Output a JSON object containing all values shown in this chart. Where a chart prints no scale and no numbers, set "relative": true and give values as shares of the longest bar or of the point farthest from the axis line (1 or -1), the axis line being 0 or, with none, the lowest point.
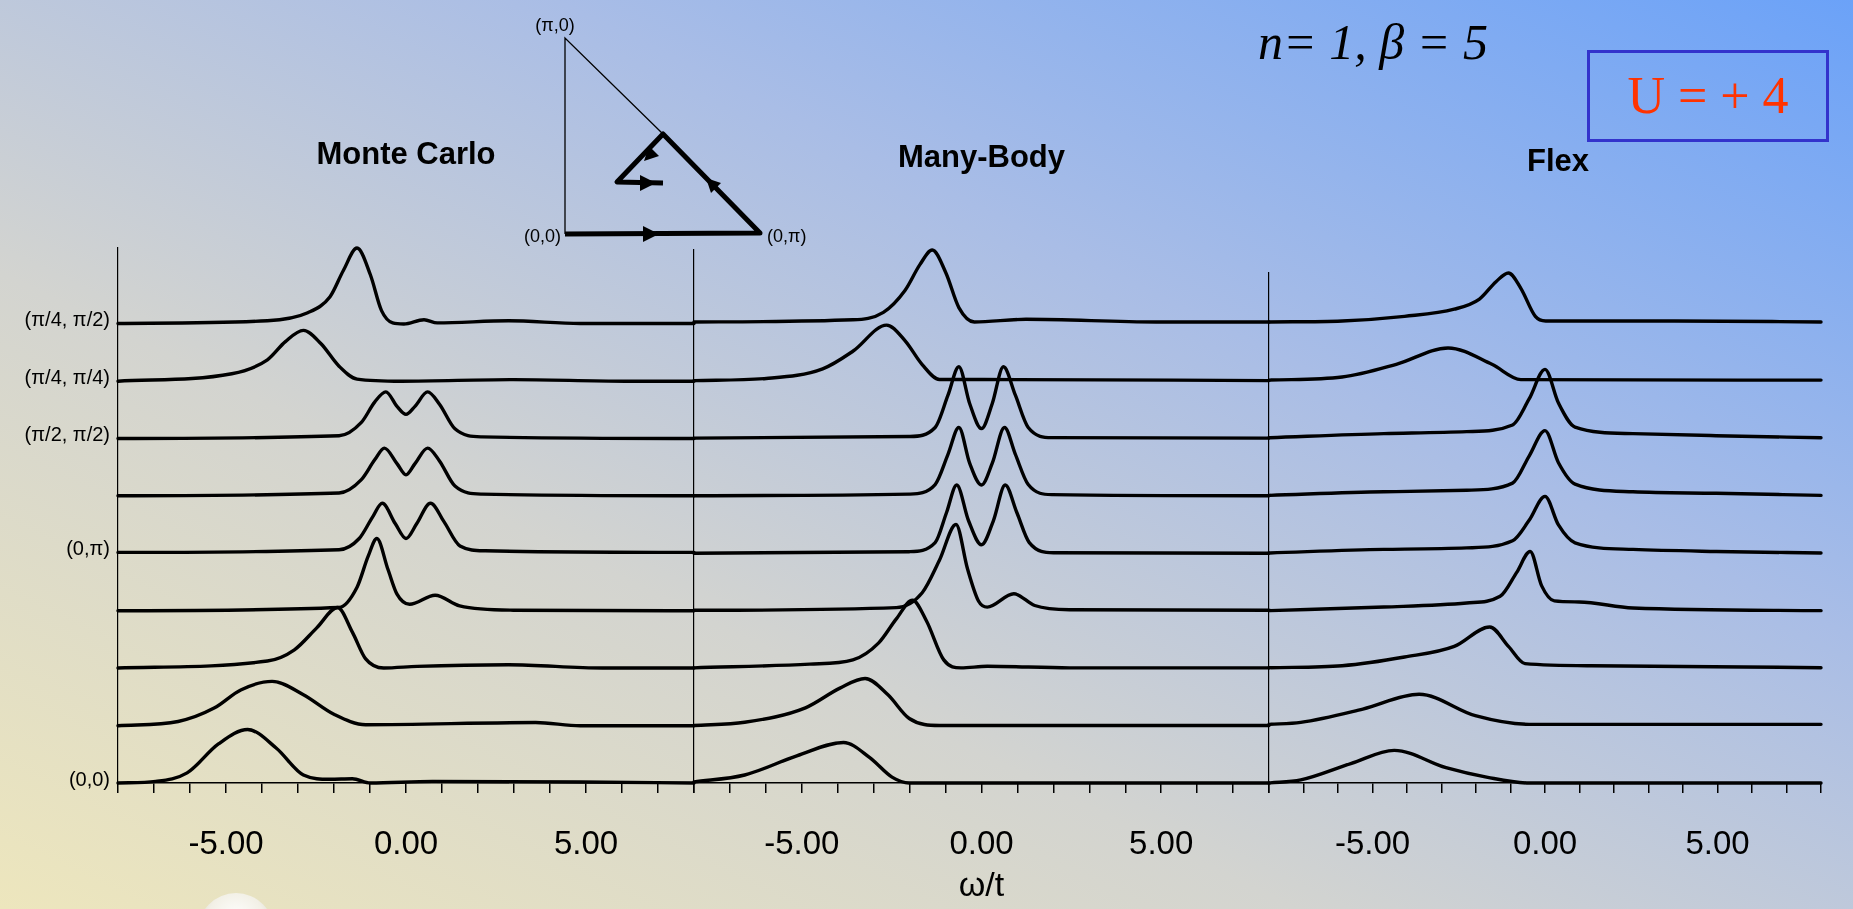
{
  "chart_data": [
    {
      "type": "line",
      "title": "Monte Carlo",
      "relative": true,
      "xlim": [
        -8,
        8
      ],
      "xticks": [
        {
          "value": -8,
          "label": null
        },
        {
          "value": -7,
          "label": null
        },
        {
          "value": -6,
          "label": null
        },
        {
          "value": -5,
          "label": "-5.00"
        },
        {
          "value": -4,
          "label": null
        },
        {
          "value": -3,
          "label": null
        },
        {
          "value": -2,
          "label": null
        },
        {
          "value": -1,
          "label": null
        },
        {
          "value": 0,
          "label": "0.00"
        },
        {
          "value": 1,
          "label": null
        },
        {
          "value": 2,
          "label": null
        },
        {
          "value": 3,
          "label": null
        },
        {
          "value": 4,
          "label": null
        },
        {
          "value": 5,
          "label": "5.00"
        },
        {
          "value": 6,
          "label": null
        },
        {
          "value": 7,
          "label": null
        },
        {
          "value": 8,
          "label": null
        }
      ],
      "annotations": [
        "(π,0)",
        "(0,0)",
        "(0,π)"
      ],
      "series": [
        {
          "name": "(π/4, π/2)",
          "color": "#000000",
          "x": [
            -8,
            -3.85,
            -2.73,
            -2.11,
            -1.74,
            -1.36,
            -0.99,
            -0.68,
            -0.37,
            -0.06,
            0.5,
            0.87,
            2.85,
            4.84,
            8
          ],
          "values": [
            0.859,
            0.864,
            0.879,
            0.909,
            0.958,
            1,
            0.95,
            0.883,
            0.86,
            0.858,
            0.866,
            0.86,
            0.864,
            0.859,
            0.859
          ]
        },
        {
          "name": "(π/4, π/4)",
          "color": "#000000",
          "x": [
            -8,
            -4.84,
            -3.85,
            -3.35,
            -2.85,
            -2.36,
            -1.86,
            -1.36,
            -0.12,
            2.98,
            6.08,
            8
          ],
          "values": [
            0.751,
            0.765,
            0.791,
            0.825,
            0.846,
            0.821,
            0.779,
            0.755,
            0.751,
            0.754,
            0.751,
            0.751
          ]
        },
        {
          "name": "(π/2, π/2)",
          "color": "#000000",
          "x": [
            -8,
            -1.86,
            -1.24,
            -0.87,
            -0.56,
            -0.25,
            0,
            0.25,
            0.6,
            0.93,
            1.36,
            2.11,
            8
          ],
          "values": [
            0.644,
            0.649,
            0.674,
            0.712,
            0.731,
            0.704,
            0.689,
            0.704,
            0.731,
            0.708,
            0.662,
            0.647,
            0.644
          ]
        },
        {
          "color": "#000000",
          "x": [
            -8,
            -1.86,
            -1.24,
            -0.87,
            -0.6,
            -0.25,
            0,
            0.25,
            0.6,
            0.93,
            1.36,
            2.11,
            8
          ],
          "values": [
            0.537,
            0.542,
            0.567,
            0.604,
            0.626,
            0.597,
            0.576,
            0.597,
            0.626,
            0.602,
            0.555,
            0.54,
            0.537
          ]
        },
        {
          "name": "(0,π)",
          "color": "#000000",
          "x": [
            -8,
            -1.86,
            -1.3,
            -0.93,
            -0.66,
            -0.3,
            0,
            0.3,
            0.68,
            1.05,
            1.5,
            2.2,
            8
          ],
          "values": [
            0.431,
            0.436,
            0.457,
            0.497,
            0.523,
            0.485,
            0.457,
            0.485,
            0.523,
            0.489,
            0.443,
            0.434,
            0.431
          ]
        },
        {
          "color": "#000000",
          "x": [
            -8,
            -1.86,
            -1.36,
            -1.05,
            -0.81,
            -0.5,
            -0.25,
            0.1,
            0.81,
            1.49,
            2.98,
            8
          ],
          "values": [
            0.322,
            0.328,
            0.366,
            0.424,
            0.457,
            0.399,
            0.353,
            0.334,
            0.351,
            0.331,
            0.323,
            0.322
          ]
        },
        {
          "color": "#000000",
          "x": [
            -8,
            -3.85,
            -3.1,
            -2.48,
            -1.9,
            -1.49,
            -1.12,
            -0.62,
            0.31,
            2.85,
            5.46,
            8
          ],
          "values": [
            0.215,
            0.228,
            0.249,
            0.29,
            0.328,
            0.282,
            0.232,
            0.215,
            0.218,
            0.221,
            0.215,
            0.215
          ]
        },
        {
          "color": "#000000",
          "x": [
            -8,
            -6.33,
            -5.33,
            -4.59,
            -3.72,
            -2.85,
            -1.99,
            -1.12,
            3.6,
            4.84,
            8
          ],
          "values": [
            0.107,
            0.115,
            0.14,
            0.174,
            0.19,
            0.165,
            0.128,
            0.109,
            0.113,
            0.107,
            0.107
          ]
        },
        {
          "name": "(0,0)",
          "color": "#000000",
          "x": [
            -8,
            -6.95,
            -6.08,
            -5.21,
            -4.4,
            -3.6,
            -2.85,
            -2.11,
            -1.49,
            -0.99,
            0.74,
            4.84,
            8
          ],
          "values": [
            0,
            0.003,
            0.019,
            0.073,
            0.1,
            0.065,
            0.015,
            0.007,
            0.008,
            0,
            0.003,
            0.002,
            0
          ]
        }
      ]
    },
    {
      "type": "line",
      "title": "Many-Body",
      "xlabel": "ω/t",
      "relative": true,
      "xlim": [
        -8,
        8
      ],
      "xticks": [
        {
          "value": -8,
          "label": null
        },
        {
          "value": -7,
          "label": null
        },
        {
          "value": -6,
          "label": null
        },
        {
          "value": -5,
          "label": "-5.00"
        },
        {
          "value": -4,
          "label": null
        },
        {
          "value": -3,
          "label": null
        },
        {
          "value": -2,
          "label": null
        },
        {
          "value": -1,
          "label": null
        },
        {
          "value": 0,
          "label": "0.00"
        },
        {
          "value": 1,
          "label": null
        },
        {
          "value": 2,
          "label": null
        },
        {
          "value": 3,
          "label": null
        },
        {
          "value": 4,
          "label": null
        },
        {
          "value": 5,
          "label": "5.00"
        },
        {
          "value": 6,
          "label": null
        },
        {
          "value": 7,
          "label": null
        },
        {
          "value": 8,
          "label": null
        }
      ],
      "series": [
        {
          "color": "#000000",
          "x": [
            -8,
            -3.58,
            -2.73,
            -2.13,
            -1.71,
            -1.37,
            -0.99,
            -0.63,
            -0.2,
            1.24,
            4.86,
            8
          ],
          "values": [
            0.865,
            0.869,
            0.883,
            0.924,
            0.973,
            1,
            0.957,
            0.892,
            0.865,
            0.87,
            0.865,
            0.865
          ]
        },
        {
          "color": "#000000",
          "x": [
            -8,
            -5.99,
            -4.42,
            -3.58,
            -2.64,
            -2.13,
            -1.65,
            -1.17,
            0.04,
            8
          ],
          "values": [
            0.755,
            0.759,
            0.777,
            0.81,
            0.859,
            0.83,
            0.785,
            0.757,
            0.757,
            0.755
          ]
        },
        {
          "color": "#000000",
          "x": [
            -8,
            -2.01,
            -1.29,
            -0.93,
            -0.63,
            -0.33,
            0,
            0.3,
            0.61,
            0.94,
            1.3,
            1.96,
            8
          ],
          "values": [
            0.647,
            0.65,
            0.667,
            0.728,
            0.781,
            0.712,
            0.665,
            0.712,
            0.781,
            0.728,
            0.667,
            0.648,
            0.647
          ]
        },
        {
          "color": "#000000",
          "x": [
            -8,
            -2.01,
            -1.29,
            -0.93,
            -0.63,
            -0.33,
            0,
            0.3,
            0.64,
            0.94,
            1.3,
            1.96,
            8
          ],
          "values": [
            0.539,
            0.542,
            0.56,
            0.617,
            0.667,
            0.6,
            0.559,
            0.6,
            0.667,
            0.617,
            0.56,
            0.541,
            0.539
          ]
        },
        {
          "color": "#000000",
          "x": [
            -8,
            -2.01,
            -1.29,
            -0.97,
            -0.69,
            -0.36,
            0,
            0.33,
            0.66,
            0.98,
            1.33,
            2,
            8
          ],
          "values": [
            0.431,
            0.434,
            0.451,
            0.508,
            0.559,
            0.492,
            0.447,
            0.492,
            0.559,
            0.508,
            0.451,
            0.432,
            0.431
          ]
        },
        {
          "color": "#000000",
          "x": [
            -8,
            -2.37,
            -1.65,
            -1.17,
            -0.71,
            -0.39,
            -0.08,
            0.16,
            0.9,
            1.48,
            2.45,
            8
          ],
          "values": [
            0.324,
            0.329,
            0.357,
            0.418,
            0.485,
            0.402,
            0.341,
            0.33,
            0.355,
            0.333,
            0.325,
            0.324
          ]
        },
        {
          "color": "#000000",
          "x": [
            -8,
            -4.78,
            -3.58,
            -2.86,
            -2.37,
            -1.92,
            -1.53,
            -1.05,
            -0.57,
            0.16,
            2.45,
            8
          ],
          "values": [
            0.216,
            0.223,
            0.231,
            0.263,
            0.308,
            0.343,
            0.304,
            0.231,
            0.216,
            0.219,
            0.216,
            0.216
          ]
        },
        {
          "color": "#000000",
          "x": [
            -8,
            -6.59,
            -4.9,
            -3.94,
            -3.24,
            -2.61,
            -2.01,
            -1.17,
            8
          ],
          "values": [
            0.108,
            0.114,
            0.141,
            0.178,
            0.196,
            0.166,
            0.121,
            0.108,
            0.108
          ]
        },
        {
          "color": "#000000",
          "x": [
            -8,
            -6.59,
            -5.14,
            -3.84,
            -3.1,
            -2.49,
            -2.01,
            8
          ],
          "values": [
            0.002,
            0.015,
            0.051,
            0.076,
            0.047,
            0.011,
            0,
            0
          ]
        }
      ]
    },
    {
      "type": "line",
      "title": "Flex",
      "relative": true,
      "xlim": [
        -8,
        8
      ],
      "xticks": [
        {
          "value": -8,
          "label": null
        },
        {
          "value": -7,
          "label": null
        },
        {
          "value": -6,
          "label": null
        },
        {
          "value": -5,
          "label": "-5.00"
        },
        {
          "value": -4,
          "label": null
        },
        {
          "value": -3,
          "label": null
        },
        {
          "value": -2,
          "label": null
        },
        {
          "value": -1,
          "label": null
        },
        {
          "value": 0,
          "label": "0.00"
        },
        {
          "value": 1,
          "label": null
        },
        {
          "value": 2,
          "label": null
        },
        {
          "value": 3,
          "label": null
        },
        {
          "value": 4,
          "label": null
        },
        {
          "value": 5,
          "label": "5.00"
        },
        {
          "value": 6,
          "label": null
        },
        {
          "value": 7,
          "label": null
        },
        {
          "value": 8,
          "label": null
        }
      ],
      "annotations": [
        "n= 1, β = 5",
        "U = + 4"
      ],
      "series": [
        {
          "color": "#000000",
          "x": [
            -8,
            -5.88,
            -4.07,
            -2.63,
            -1.9,
            -1.42,
            -1.06,
            -0.7,
            -0.28,
            0.02,
            3.76,
            8
          ],
          "values": [
            0.904,
            0.906,
            0.915,
            0.929,
            0.949,
            0.983,
            1,
            0.97,
            0.915,
            0.906,
            0.906,
            0.904
          ]
        },
        {
          "color": "#000000",
          "x": [
            -8,
            -5.88,
            -4.31,
            -2.81,
            -1.54,
            -0.7,
            8
          ],
          "values": [
            0.79,
            0.796,
            0.821,
            0.853,
            0.821,
            0.791,
            0.79
          ]
        },
        {
          "color": "#000000",
          "x": [
            -8,
            -4.67,
            -2.27,
            -0.94,
            -0.46,
            0,
            0.39,
            0.87,
            2.55,
            4.96,
            8
          ],
          "values": [
            0.677,
            0.685,
            0.689,
            0.702,
            0.753,
            0.811,
            0.745,
            0.698,
            0.685,
            0.681,
            0.677
          ]
        },
        {
          "color": "#000000",
          "x": [
            -8,
            -4.67,
            -2.27,
            -0.94,
            -0.46,
            0,
            0.39,
            0.87,
            2.55,
            4.96,
            8
          ],
          "values": [
            0.564,
            0.571,
            0.574,
            0.588,
            0.641,
            0.691,
            0.628,
            0.586,
            0.571,
            0.568,
            0.564
          ]
        },
        {
          "color": "#000000",
          "x": [
            -8,
            -4.67,
            -2.27,
            -0.94,
            -0.46,
            0,
            0.39,
            0.87,
            2.55,
            4.96,
            8
          ],
          "values": [
            0.451,
            0.458,
            0.461,
            0.475,
            0.515,
            0.562,
            0.506,
            0.471,
            0.458,
            0.454,
            0.451
          ]
        },
        {
          "color": "#000000",
          "x": [
            -8,
            -4.67,
            -2.27,
            -1.3,
            -0.82,
            -0.43,
            -0.1,
            0.27,
            0.99,
            2.55,
            8
          ],
          "values": [
            0.338,
            0.345,
            0.353,
            0.366,
            0.413,
            0.454,
            0.387,
            0.357,
            0.355,
            0.343,
            0.338
          ]
        },
        {
          "color": "#000000",
          "x": [
            -8,
            -5.88,
            -4.07,
            -2.63,
            -1.6,
            -1.06,
            -0.58,
            1.35,
            8
          ],
          "values": [
            0.226,
            0.23,
            0.247,
            0.268,
            0.306,
            0.268,
            0.234,
            0.23,
            0.226
          ]
        },
        {
          "color": "#000000",
          "x": [
            -8,
            -7.08,
            -5.28,
            -3.65,
            -2.02,
            -0.46,
            8
          ],
          "values": [
            0.115,
            0.119,
            0.145,
            0.174,
            0.132,
            0.115,
            0.115
          ]
        },
        {
          "color": "#000000",
          "x": [
            -8,
            -7.08,
            -5.63,
            -4.37,
            -2.87,
            -1.66,
            -0.46,
            8
          ],
          "values": [
            0,
            0.006,
            0.038,
            0.064,
            0.03,
            0.011,
            0,
            0
          ]
        }
      ]
    }
  ]
}
